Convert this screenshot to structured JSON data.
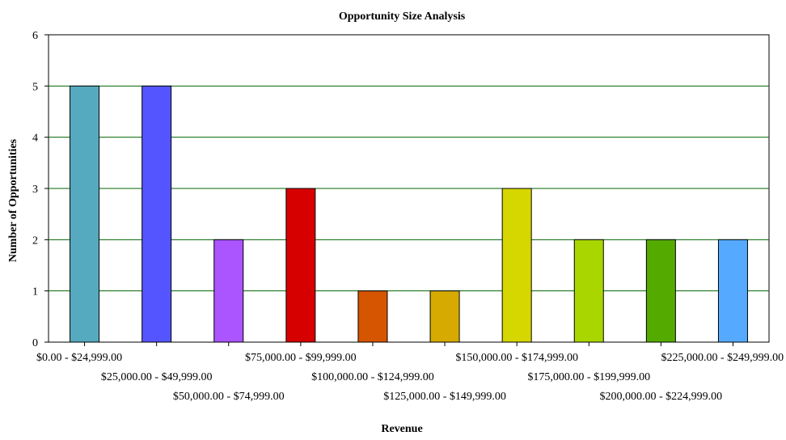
{
  "chart_data": {
    "type": "bar",
    "title": "Opportunity Size Analysis",
    "xlabel": "Revenue",
    "ylabel": "Number of Opportunities",
    "ylim": [
      0,
      6
    ],
    "yticks": [
      0,
      1,
      2,
      3,
      4,
      5,
      6
    ],
    "grid": true,
    "legend": "none",
    "categories": [
      "$0.00 - $24,999.00",
      "$25,000.00 - $49,999.00",
      "$50,000.00 - $74,999.00",
      "$75,000.00 - $99,999.00",
      "$100,000.00 - $124,999.00",
      "$125,000.00 - $149,999.00",
      "$150,000.00 - $174,999.00",
      "$175,000.00 - $199,999.00",
      "$200,000.00 - $224,999.00",
      "$225,000.00 - $249,999.00"
    ],
    "values": [
      5,
      5,
      2,
      3,
      1,
      1,
      3,
      2,
      2,
      2
    ],
    "colors": [
      "#56aabf",
      "#5555ff",
      "#aa55ff",
      "#d60000",
      "#d65500",
      "#d6aa00",
      "#d6d600",
      "#aad600",
      "#55aa00",
      "#55aaff"
    ],
    "grid_color": "#006400"
  }
}
